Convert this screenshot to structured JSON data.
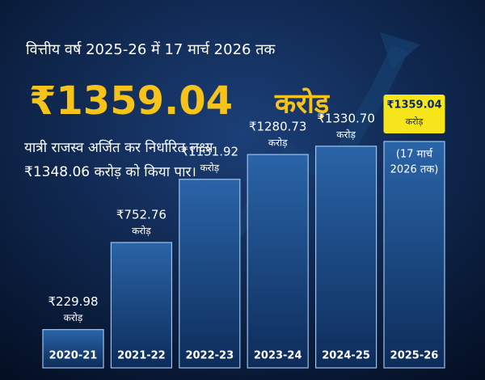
{
  "chart_data": {
    "type": "bar",
    "subtitle": "वित्तीय वर्ष 2025-26 में 17 मार्च 2026 तक",
    "headline": "₹1359.04",
    "headline_unit": "करोड़",
    "description": [
      "यात्री राजस्व अर्जित कर निर्धारित लक्ष्य",
      "₹1348.06 करोड़ को किया पार।"
    ],
    "categories": [
      "2020-21",
      "2021-22",
      "2022-23",
      "2023-24",
      "2024-25",
      "2025-26"
    ],
    "values": [
      229.98,
      752.76,
      1131.92,
      1280.73,
      1330.7,
      1359.04
    ],
    "value_labels": [
      "₹229.98",
      "₹752.76",
      "₹1131.92",
      "₹1280.73",
      "₹1330.70",
      "₹1359.04"
    ],
    "unit": "करोड़",
    "annotation": [
      "(17 मार्च",
      "2026 तक)"
    ],
    "color": "#1c4f8f"
  }
}
